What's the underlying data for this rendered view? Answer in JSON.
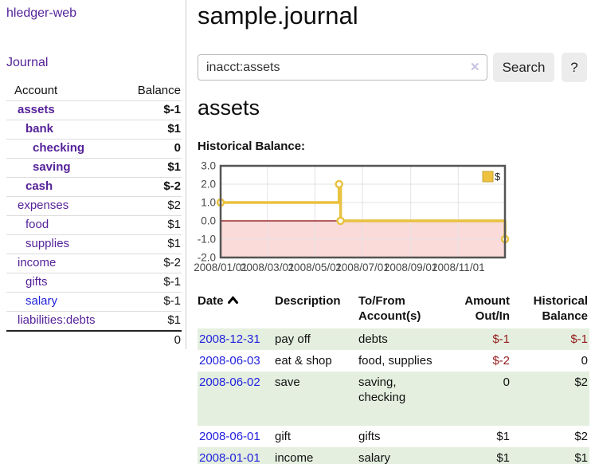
{
  "brand": "hledger-web",
  "nav": {
    "journal": "Journal"
  },
  "sidebar": {
    "headers": {
      "account": "Account",
      "balance": "Balance"
    },
    "accounts": [
      {
        "name": "assets",
        "balance": "$-1"
      },
      {
        "name": "bank",
        "balance": "$1"
      },
      {
        "name": "checking",
        "balance": "0"
      },
      {
        "name": "saving",
        "balance": "$1"
      },
      {
        "name": "cash",
        "balance": "$-2"
      },
      {
        "name": "expenses",
        "balance": "$2"
      },
      {
        "name": "food",
        "balance": "$1"
      },
      {
        "name": "supplies",
        "balance": "$1"
      },
      {
        "name": "income",
        "balance": "$-2"
      },
      {
        "name": "gifts",
        "balance": "$-1"
      },
      {
        "name": "salary",
        "balance": "$-1"
      },
      {
        "name": "liabilities:debts",
        "balance": "$1"
      }
    ],
    "total": "0"
  },
  "header": {
    "title": "sample.journal"
  },
  "search": {
    "value": "inacct:assets",
    "clear_icon": "✕",
    "button_label": "Search",
    "help_label": "?"
  },
  "account_page": {
    "heading": "assets",
    "chart_title": "Historical Balance:"
  },
  "chart_data": {
    "type": "line",
    "step": true,
    "title": "Historical Balance of assets",
    "legend": [
      {
        "label": "$",
        "color": "#edc240"
      }
    ],
    "points": [
      {
        "date": "2008-01-01",
        "value": 1
      },
      {
        "date": "2008-06-01",
        "value": 2
      },
      {
        "date": "2008-06-03",
        "value": 0
      },
      {
        "date": "2008-12-31",
        "value": -1
      }
    ],
    "x_range": [
      "2008-01-01",
      "2008-12-31"
    ],
    "ylim": [
      -2,
      3
    ],
    "yticks": [
      "3.0",
      "2.0",
      "1.0",
      "0.0",
      "-1.0",
      "-2.0"
    ],
    "xticks": [
      "2008/01/01",
      "2008/03/01",
      "2008/05/01",
      "2008/07/01",
      "2008/09/01",
      "2008/11/01"
    ],
    "grid": true,
    "legend_position": "top-right",
    "colors": {
      "line": "#e8c240",
      "marker_fill": "#ffffff",
      "grid": "#e3e3e3",
      "border": "#545454",
      "negative_fill": "#fbdada",
      "zero_line": "#8b0000",
      "tick_text": "#474747",
      "legend_border": "#c7a334"
    }
  },
  "register": {
    "headers": {
      "date": "Date",
      "sort_icon": "caret-up",
      "description": "Description",
      "accounts": "To/From\nAccount(s)",
      "amount": "Amount\nOut/In",
      "balance": "Historical\nBalance"
    },
    "rows": [
      {
        "date": "2008-12-31",
        "description": "pay off",
        "accounts": "debts",
        "amount": "$-1",
        "balance": "$-1"
      },
      {
        "date": "2008-06-03",
        "description": "eat & shop",
        "accounts": "food, supplies",
        "amount": "$-2",
        "balance": "0"
      },
      {
        "date": "2008-06-02",
        "description": "save",
        "accounts": "saving,\nchecking",
        "amount": "0",
        "balance": "$2"
      },
      {
        "date": "2008-06-01",
        "description": "gift",
        "accounts": "gifts",
        "amount": "$1",
        "balance": "$2"
      },
      {
        "date": "2008-01-01",
        "description": "income",
        "accounts": "salary",
        "amount": "$1",
        "balance": "$1"
      }
    ]
  },
  "ui_colors": {
    "link_purple": "#552299",
    "link_blue": "#2222dd",
    "negative_strong": "#9e1616",
    "negative_muted": "#c06a6e",
    "row_green": "#e4efdf"
  }
}
